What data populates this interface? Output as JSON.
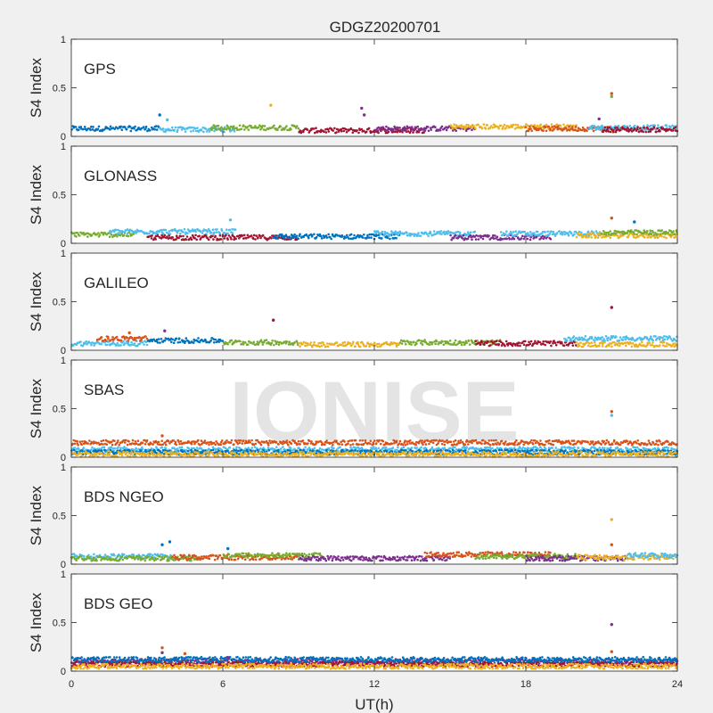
{
  "chart_data": {
    "type": "scatter",
    "title": "GDGZ20200701",
    "xlabel": "UT(h)",
    "ylabel": "S4 Index",
    "xlim": [
      0,
      24
    ],
    "ylim": [
      0,
      1
    ],
    "x_ticks": [
      "0",
      "6",
      "12",
      "18",
      "24"
    ],
    "y_ticks": [
      "0",
      "0.5",
      "1"
    ],
    "watermark": "IONISE",
    "series_colors": [
      "#0072bd",
      "#d95319",
      "#edb120",
      "#7e2f8e",
      "#77ac30",
      "#4dbeee",
      "#a2142f"
    ],
    "panels": [
      {
        "label": "GPS",
        "baseline": 0.08,
        "segments": [
          {
            "x": [
              0,
              3.5
            ],
            "y": 0.08,
            "color": "#0072bd"
          },
          {
            "x": [
              3.5,
              6.5
            ],
            "y": 0.07,
            "color": "#4dbeee"
          },
          {
            "x": [
              5.5,
              9
            ],
            "y": 0.09,
            "color": "#77ac30"
          },
          {
            "x": [
              9,
              14
            ],
            "y": 0.06,
            "color": "#a2142f"
          },
          {
            "x": [
              12,
              16
            ],
            "y": 0.08,
            "color": "#7e2f8e"
          },
          {
            "x": [
              15,
              20
            ],
            "y": 0.1,
            "color": "#edb120"
          },
          {
            "x": [
              18,
              22
            ],
            "y": 0.08,
            "color": "#d95319"
          },
          {
            "x": [
              20.5,
              24
            ],
            "y": 0.09,
            "color": "#4dbeee"
          },
          {
            "x": [
              21,
              24
            ],
            "y": 0.07,
            "color": "#a2142f"
          }
        ],
        "peaks": [
          {
            "x": 3.5,
            "y": 0.22,
            "color": "#0072bd"
          },
          {
            "x": 3.8,
            "y": 0.17,
            "color": "#4dbeee"
          },
          {
            "x": 7.9,
            "y": 0.32,
            "color": "#edb120"
          },
          {
            "x": 11.5,
            "y": 0.29,
            "color": "#7e2f8e"
          },
          {
            "x": 11.6,
            "y": 0.22,
            "color": "#7e2f8e"
          },
          {
            "x": 21.4,
            "y": 0.44,
            "color": "#d95319"
          },
          {
            "x": 21.4,
            "y": 0.41,
            "color": "#77ac30"
          },
          {
            "x": 20.9,
            "y": 0.18,
            "color": "#7e2f8e"
          }
        ]
      },
      {
        "label": "GLONASS",
        "baseline": 0.07,
        "segments": [
          {
            "x": [
              0,
              2.5
            ],
            "y": 0.09,
            "color": "#77ac30"
          },
          {
            "x": [
              1.5,
              6.5
            ],
            "y": 0.12,
            "color": "#4dbeee"
          },
          {
            "x": [
              3,
              9
            ],
            "y": 0.06,
            "color": "#a2142f"
          },
          {
            "x": [
              8,
              13
            ],
            "y": 0.07,
            "color": "#0072bd"
          },
          {
            "x": [
              12,
              16
            ],
            "y": 0.1,
            "color": "#4dbeee"
          },
          {
            "x": [
              15,
              19
            ],
            "y": 0.06,
            "color": "#7e2f8e"
          },
          {
            "x": [
              17,
              21
            ],
            "y": 0.1,
            "color": "#4dbeee"
          },
          {
            "x": [
              20,
              24
            ],
            "y": 0.08,
            "color": "#edb120"
          },
          {
            "x": [
              21,
              24
            ],
            "y": 0.11,
            "color": "#77ac30"
          }
        ],
        "peaks": [
          {
            "x": 6.3,
            "y": 0.24,
            "color": "#4dbeee"
          },
          {
            "x": 21.4,
            "y": 0.26,
            "color": "#d95319"
          },
          {
            "x": 22.3,
            "y": 0.22,
            "color": "#0072bd"
          }
        ]
      },
      {
        "label": "GALILEO",
        "baseline": 0.06,
        "segments": [
          {
            "x": [
              0,
              3
            ],
            "y": 0.07,
            "color": "#4dbeee"
          },
          {
            "x": [
              1,
              3
            ],
            "y": 0.12,
            "color": "#d95319"
          },
          {
            "x": [
              3,
              6
            ],
            "y": 0.1,
            "color": "#0072bd"
          },
          {
            "x": [
              6,
              9
            ],
            "y": 0.08,
            "color": "#77ac30"
          },
          {
            "x": [
              9,
              13
            ],
            "y": 0.06,
            "color": "#edb120"
          },
          {
            "x": [
              13,
              17
            ],
            "y": 0.08,
            "color": "#77ac30"
          },
          {
            "x": [
              16,
              20
            ],
            "y": 0.07,
            "color": "#a2142f"
          },
          {
            "x": [
              19.5,
              24
            ],
            "y": 0.12,
            "color": "#4dbeee"
          },
          {
            "x": [
              20,
              24
            ],
            "y": 0.06,
            "color": "#edb120"
          }
        ],
        "peaks": [
          {
            "x": 2.3,
            "y": 0.18,
            "color": "#d95319"
          },
          {
            "x": 3.7,
            "y": 0.2,
            "color": "#7e2f8e"
          },
          {
            "x": 8.0,
            "y": 0.31,
            "color": "#a2142f"
          },
          {
            "x": 21.4,
            "y": 0.44,
            "color": "#a2142f"
          }
        ]
      },
      {
        "label": "SBAS",
        "baseline": 0.06,
        "segments": [
          {
            "x": [
              0,
              24
            ],
            "y": 0.15,
            "color": "#d95319"
          },
          {
            "x": [
              0,
              24
            ],
            "y": 0.08,
            "color": "#4dbeee"
          },
          {
            "x": [
              0,
              24
            ],
            "y": 0.05,
            "color": "#0072bd"
          },
          {
            "x": [
              0,
              24
            ],
            "y": 0.03,
            "color": "#edb120"
          }
        ],
        "peaks": [
          {
            "x": 3.6,
            "y": 0.22,
            "color": "#d95319"
          },
          {
            "x": 21.4,
            "y": 0.47,
            "color": "#d95319"
          },
          {
            "x": 21.4,
            "y": 0.43,
            "color": "#4dbeee"
          }
        ]
      },
      {
        "label": "BDS NGEO",
        "baseline": 0.07,
        "segments": [
          {
            "x": [
              0,
              4
            ],
            "y": 0.08,
            "color": "#4dbeee"
          },
          {
            "x": [
              0,
              5
            ],
            "y": 0.06,
            "color": "#77ac30"
          },
          {
            "x": [
              4,
              9
            ],
            "y": 0.07,
            "color": "#d95319"
          },
          {
            "x": [
              6,
              10
            ],
            "y": 0.09,
            "color": "#77ac30"
          },
          {
            "x": [
              9,
              15
            ],
            "y": 0.06,
            "color": "#7e2f8e"
          },
          {
            "x": [
              14,
              19
            ],
            "y": 0.1,
            "color": "#d95319"
          },
          {
            "x": [
              16,
              20
            ],
            "y": 0.08,
            "color": "#77ac30"
          },
          {
            "x": [
              18,
              22
            ],
            "y": 0.06,
            "color": "#7e2f8e"
          },
          {
            "x": [
              20,
              24
            ],
            "y": 0.07,
            "color": "#edb120"
          },
          {
            "x": [
              22,
              24
            ],
            "y": 0.09,
            "color": "#4dbeee"
          }
        ],
        "peaks": [
          {
            "x": 3.6,
            "y": 0.2,
            "color": "#0072bd"
          },
          {
            "x": 3.9,
            "y": 0.23,
            "color": "#0072bd"
          },
          {
            "x": 6.2,
            "y": 0.16,
            "color": "#0072bd"
          },
          {
            "x": 21.4,
            "y": 0.46,
            "color": "#edb120"
          },
          {
            "x": 21.4,
            "y": 0.2,
            "color": "#d95319"
          }
        ]
      },
      {
        "label": "BDS GEO",
        "baseline": 0.09,
        "segments": [
          {
            "x": [
              0,
              24
            ],
            "y": 0.1,
            "color": "#7e2f8e"
          },
          {
            "x": [
              0,
              24
            ],
            "y": 0.07,
            "color": "#a2142f"
          },
          {
            "x": [
              0,
              24
            ],
            "y": 0.05,
            "color": "#edb120"
          },
          {
            "x": [
              0,
              24
            ],
            "y": 0.12,
            "color": "#0072bd"
          }
        ],
        "peaks": [
          {
            "x": 3.6,
            "y": 0.24,
            "color": "#d95319"
          },
          {
            "x": 3.6,
            "y": 0.19,
            "color": "#7e2f8e"
          },
          {
            "x": 4.5,
            "y": 0.18,
            "color": "#d95319"
          },
          {
            "x": 6.2,
            "y": 0.14,
            "color": "#7e2f8e"
          },
          {
            "x": 21.4,
            "y": 0.48,
            "color": "#7e2f8e"
          },
          {
            "x": 21.4,
            "y": 0.2,
            "color": "#d95319"
          }
        ]
      }
    ]
  }
}
